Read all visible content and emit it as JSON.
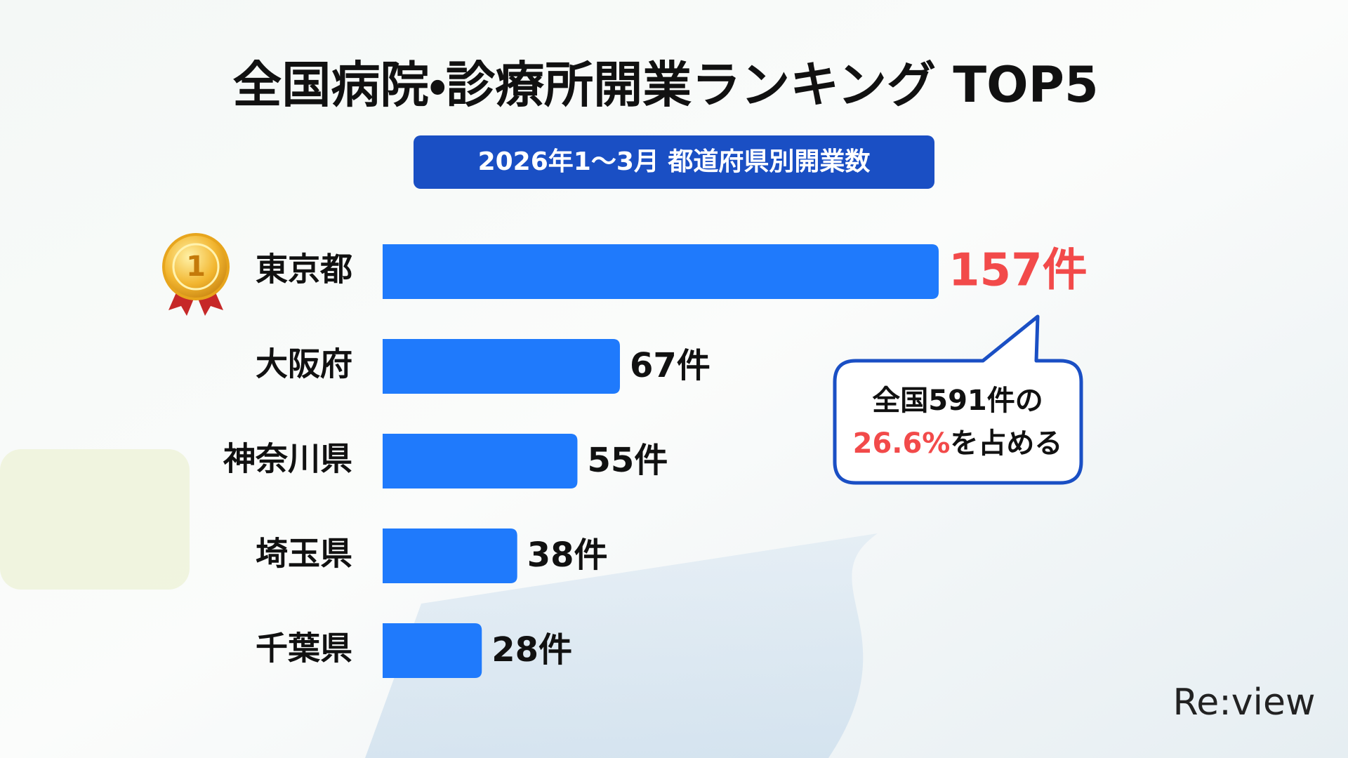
{
  "chart_data": {
    "type": "bar",
    "orientation": "horizontal",
    "title": "全国病院・診療所開業ランキング TOP5",
    "subtitle": "2026年1～3月 都道府県別開業数",
    "categories": [
      "東京都",
      "大阪府",
      "神奈川県",
      "埼玉県",
      "千葉県"
    ],
    "values": [
      157,
      67,
      55,
      38,
      28
    ],
    "value_labels": [
      "157件",
      "67件",
      "55件",
      "38件",
      "28件"
    ],
    "color": "#1f7afc",
    "highlight_color": "#f24a4a",
    "callout": {
      "line1": "全国591件の",
      "highlight": "26.6%",
      "rest": "を占める"
    }
  },
  "brand": "Re:view"
}
